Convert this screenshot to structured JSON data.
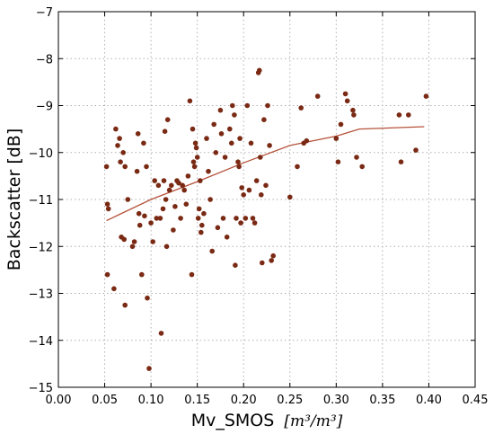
{
  "chart_data": {
    "type": "scatter",
    "xlabel": "Mv_SMOS",
    "xlabel_unit": "[m³/m³]",
    "ylabel": "Backscatter [dB]",
    "xlim": [
      0.0,
      0.45
    ],
    "ylim": [
      -15,
      -7
    ],
    "x_ticks": [
      "0.00",
      "0.05",
      "0.10",
      "0.15",
      "0.20",
      "0.25",
      "0.30",
      "0.35",
      "0.40",
      "0.45"
    ],
    "y_ticks": [
      "−7",
      "−8",
      "−9",
      "−10",
      "−11",
      "−12",
      "−13",
      "−14",
      "−15"
    ],
    "grid": true,
    "colors": {
      "points": "#7a2a14",
      "fit_line": "#b5523a"
    },
    "points": [
      [
        0.052,
        -10.3
      ],
      [
        0.053,
        -11.1
      ],
      [
        0.054,
        -11.2
      ],
      [
        0.053,
        -12.6
      ],
      [
        0.06,
        -12.9
      ],
      [
        0.062,
        -9.5
      ],
      [
        0.064,
        -9.85
      ],
      [
        0.066,
        -9.7
      ],
      [
        0.067,
        -10.2
      ],
      [
        0.068,
        -11.8
      ],
      [
        0.07,
        -10.0
      ],
      [
        0.072,
        -10.3
      ],
      [
        0.071,
        -11.85
      ],
      [
        0.072,
        -13.25
      ],
      [
        0.075,
        -11.0
      ],
      [
        0.08,
        -12.0
      ],
      [
        0.082,
        -11.9
      ],
      [
        0.085,
        -10.4
      ],
      [
        0.086,
        -9.6
      ],
      [
        0.087,
        -11.3
      ],
      [
        0.088,
        -11.55
      ],
      [
        0.09,
        -12.6
      ],
      [
        0.092,
        -9.8
      ],
      [
        0.093,
        -11.35
      ],
      [
        0.095,
        -10.3
      ],
      [
        0.096,
        -13.1
      ],
      [
        0.098,
        -14.6
      ],
      [
        0.1,
        -11.5
      ],
      [
        0.102,
        -11.9
      ],
      [
        0.104,
        -10.6
      ],
      [
        0.106,
        -11.4
      ],
      [
        0.108,
        -10.7
      ],
      [
        0.11,
        -11.4
      ],
      [
        0.111,
        -13.85
      ],
      [
        0.113,
        -11.2
      ],
      [
        0.114,
        -10.6
      ],
      [
        0.115,
        -9.55
      ],
      [
        0.116,
        -11.0
      ],
      [
        0.117,
        -12.0
      ],
      [
        0.118,
        -9.3
      ],
      [
        0.12,
        -10.8
      ],
      [
        0.122,
        -10.7
      ],
      [
        0.124,
        -11.65
      ],
      [
        0.126,
        -11.15
      ],
      [
        0.128,
        -10.6
      ],
      [
        0.13,
        -10.65
      ],
      [
        0.132,
        -11.4
      ],
      [
        0.134,
        -10.7
      ],
      [
        0.136,
        -10.8
      ],
      [
        0.138,
        -11.1
      ],
      [
        0.14,
        -10.5
      ],
      [
        0.142,
        -8.9
      ],
      [
        0.144,
        -12.6
      ],
      [
        0.145,
        -9.5
      ],
      [
        0.146,
        -10.2
      ],
      [
        0.147,
        -10.3
      ],
      [
        0.148,
        -9.8
      ],
      [
        0.149,
        -9.9
      ],
      [
        0.15,
        -10.1
      ],
      [
        0.151,
        -11.4
      ],
      [
        0.152,
        -11.2
      ],
      [
        0.153,
        -10.6
      ],
      [
        0.154,
        -11.7
      ],
      [
        0.155,
        -11.55
      ],
      [
        0.157,
        -11.3
      ],
      [
        0.16,
        -9.7
      ],
      [
        0.162,
        -10.4
      ],
      [
        0.164,
        -11.0
      ],
      [
        0.166,
        -12.1
      ],
      [
        0.168,
        -9.4
      ],
      [
        0.17,
        -10.0
      ],
      [
        0.172,
        -11.6
      ],
      [
        0.175,
        -9.1
      ],
      [
        0.176,
        -9.6
      ],
      [
        0.178,
        -11.4
      ],
      [
        0.18,
        -10.1
      ],
      [
        0.182,
        -11.8
      ],
      [
        0.185,
        -9.5
      ],
      [
        0.187,
        -9.8
      ],
      [
        0.188,
        -9.0
      ],
      [
        0.19,
        -9.2
      ],
      [
        0.191,
        -12.4
      ],
      [
        0.192,
        -11.4
      ],
      [
        0.194,
        -10.2
      ],
      [
        0.195,
        -10.3
      ],
      [
        0.196,
        -9.7
      ],
      [
        0.197,
        -11.5
      ],
      [
        0.198,
        -10.75
      ],
      [
        0.2,
        -10.9
      ],
      [
        0.202,
        -11.4
      ],
      [
        0.204,
        -9.0
      ],
      [
        0.206,
        -10.8
      ],
      [
        0.208,
        -9.8
      ],
      [
        0.21,
        -11.4
      ],
      [
        0.212,
        -11.5
      ],
      [
        0.214,
        -10.6
      ],
      [
        0.216,
        -8.3
      ],
      [
        0.217,
        -8.25
      ],
      [
        0.218,
        -10.1
      ],
      [
        0.219,
        -10.9
      ],
      [
        0.22,
        -12.35
      ],
      [
        0.222,
        -9.3
      ],
      [
        0.224,
        -10.7
      ],
      [
        0.226,
        -9.0
      ],
      [
        0.228,
        -9.85
      ],
      [
        0.23,
        -12.3
      ],
      [
        0.232,
        -12.2
      ],
      [
        0.25,
        -10.95
      ],
      [
        0.258,
        -10.3
      ],
      [
        0.262,
        -9.05
      ],
      [
        0.265,
        -9.8
      ],
      [
        0.268,
        -9.75
      ],
      [
        0.28,
        -8.8
      ],
      [
        0.3,
        -9.7
      ],
      [
        0.302,
        -10.2
      ],
      [
        0.305,
        -9.4
      ],
      [
        0.31,
        -8.75
      ],
      [
        0.312,
        -8.9
      ],
      [
        0.318,
        -9.1
      ],
      [
        0.319,
        -9.2
      ],
      [
        0.322,
        -10.1
      ],
      [
        0.328,
        -10.3
      ],
      [
        0.368,
        -9.2
      ],
      [
        0.37,
        -10.2
      ],
      [
        0.378,
        -9.2
      ],
      [
        0.386,
        -9.95
      ],
      [
        0.397,
        -8.8
      ]
    ],
    "fit_line": [
      [
        0.052,
        -11.45
      ],
      [
        0.1,
        -11.0
      ],
      [
        0.15,
        -10.62
      ],
      [
        0.2,
        -10.22
      ],
      [
        0.25,
        -9.85
      ],
      [
        0.3,
        -9.65
      ],
      [
        0.325,
        -9.5
      ],
      [
        0.395,
        -9.45
      ]
    ]
  }
}
